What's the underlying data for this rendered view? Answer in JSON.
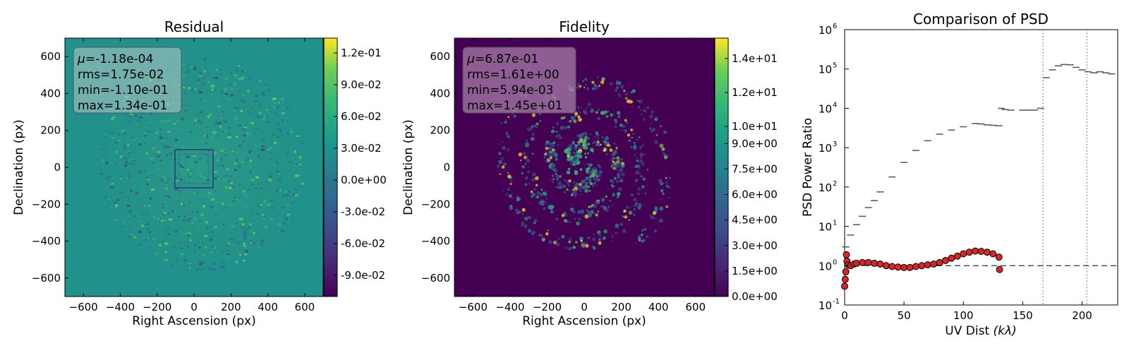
{
  "chart_data": [
    {
      "type": "heatmap",
      "title": "Residual",
      "xlabel": "Right Ascension (px)",
      "ylabel": "Declination (px)",
      "xlim": [
        -700,
        700
      ],
      "ylim": [
        -700,
        700
      ],
      "xticks": [
        "−600",
        "−400",
        "−200",
        "0",
        "200",
        "400",
        "600"
      ],
      "yticks": [
        "600",
        "400",
        "200",
        "0",
        "−200",
        "−400",
        "−600"
      ],
      "colorbar": {
        "range": [
          -0.11,
          0.134
        ],
        "ticks": [
          "1.2e-01",
          "9.0e-02",
          "6.0e-02",
          "3.0e-02",
          "0.0e+00",
          "-3.0e-02",
          "-6.0e-02",
          "-9.0e-02"
        ],
        "colormap": "viridis"
      },
      "stats": {
        "mu": "-1.18e-04",
        "rms": "rms=1.75e-02",
        "min": "min=-1.10e-01",
        "max": "max=1.34e-01"
      },
      "background_color": "#21918c"
    },
    {
      "type": "heatmap",
      "title": "Fidelity",
      "xlabel": "Right Ascension (px)",
      "ylabel": "Declination (px)",
      "xlim": [
        -700,
        700
      ],
      "ylim": [
        -700,
        700
      ],
      "xticks": [
        "−600",
        "−400",
        "−200",
        "0",
        "200",
        "400",
        "600"
      ],
      "yticks": [
        "600",
        "400",
        "200",
        "0",
        "−200",
        "−400",
        "−600"
      ],
      "colorbar": {
        "range": [
          0,
          15.2
        ],
        "ticks": [
          "1.4e+01",
          "1.2e+01",
          "1.0e+01",
          "9.0e+00",
          "7.5e+00",
          "6.0e+00",
          "4.5e+00",
          "3.0e+00",
          "1.5e+00",
          "0.0e+00"
        ],
        "colormap": "viridis"
      },
      "stats": {
        "mu": "6.87e-01",
        "rms": "rms=1.61e+00",
        "min": "min=5.94e-03",
        "max": "max=1.45e+01"
      },
      "background_color": "#440154"
    },
    {
      "type": "scatter",
      "title": "Comparison of PSD",
      "xlabel": "UV Dist",
      "xlabel_unit": "(kλ)",
      "ylabel": "PSD Power Ratio",
      "xlim": [
        0,
        230
      ],
      "ylim_log10": [
        -1,
        6
      ],
      "yscale": "log",
      "xticks": [
        "0",
        "50",
        "100",
        "150",
        "200"
      ],
      "yticks": [
        "10",
        "10",
        "10",
        "10",
        "10",
        "10",
        "10",
        "10"
      ],
      "ytick_exponents": [
        "6",
        "5",
        "4",
        "3",
        "2",
        "1",
        "0",
        "-1"
      ],
      "vlines": [
        167,
        204
      ],
      "hline": 1,
      "series": [
        {
          "marker": "dash",
          "color": "#555555",
          "x": [
            1,
            5,
            10,
            15,
            20,
            25,
            30,
            40,
            50,
            60,
            70,
            80,
            90,
            100,
            110,
            115,
            120,
            125,
            130,
            132,
            135,
            140,
            150,
            155,
            160,
            165,
            170,
            175,
            180,
            185,
            190,
            195,
            200,
            205,
            210,
            215,
            220,
            225
          ],
          "y": [
            3,
            6,
            11,
            18,
            30,
            45,
            75,
            180,
            420,
            850,
            1500,
            2200,
            2800,
            3400,
            4100,
            4000,
            3800,
            3700,
            3600,
            10000,
            9300,
            9000,
            9000,
            9000,
            9000,
            10000,
            60000,
            95000,
            120000,
            130000,
            128000,
            110000,
            95000,
            85000,
            80000,
            85000,
            80000,
            75000
          ]
        },
        {
          "marker": "circle",
          "color": "#d62728",
          "x": [
            0,
            0.5,
            1,
            1.5,
            2,
            3,
            5,
            8,
            10,
            15,
            20,
            25,
            30,
            35,
            40,
            45,
            50,
            55,
            60,
            65,
            70,
            75,
            80,
            85,
            90,
            95,
            100,
            105,
            110,
            115,
            120,
            125,
            130,
            130.5
          ],
          "y": [
            0.3,
            0.45,
            0.7,
            1.9,
            1.3,
            1.05,
            1.0,
            1.1,
            1.15,
            1.2,
            1.2,
            1.15,
            1.1,
            1.0,
            0.95,
            0.92,
            0.9,
            0.9,
            0.95,
            1.0,
            1.05,
            1.1,
            1.2,
            1.35,
            1.55,
            1.75,
            2.0,
            2.2,
            2.35,
            2.3,
            2.2,
            2.0,
            1.65,
            0.8
          ]
        }
      ]
    }
  ]
}
